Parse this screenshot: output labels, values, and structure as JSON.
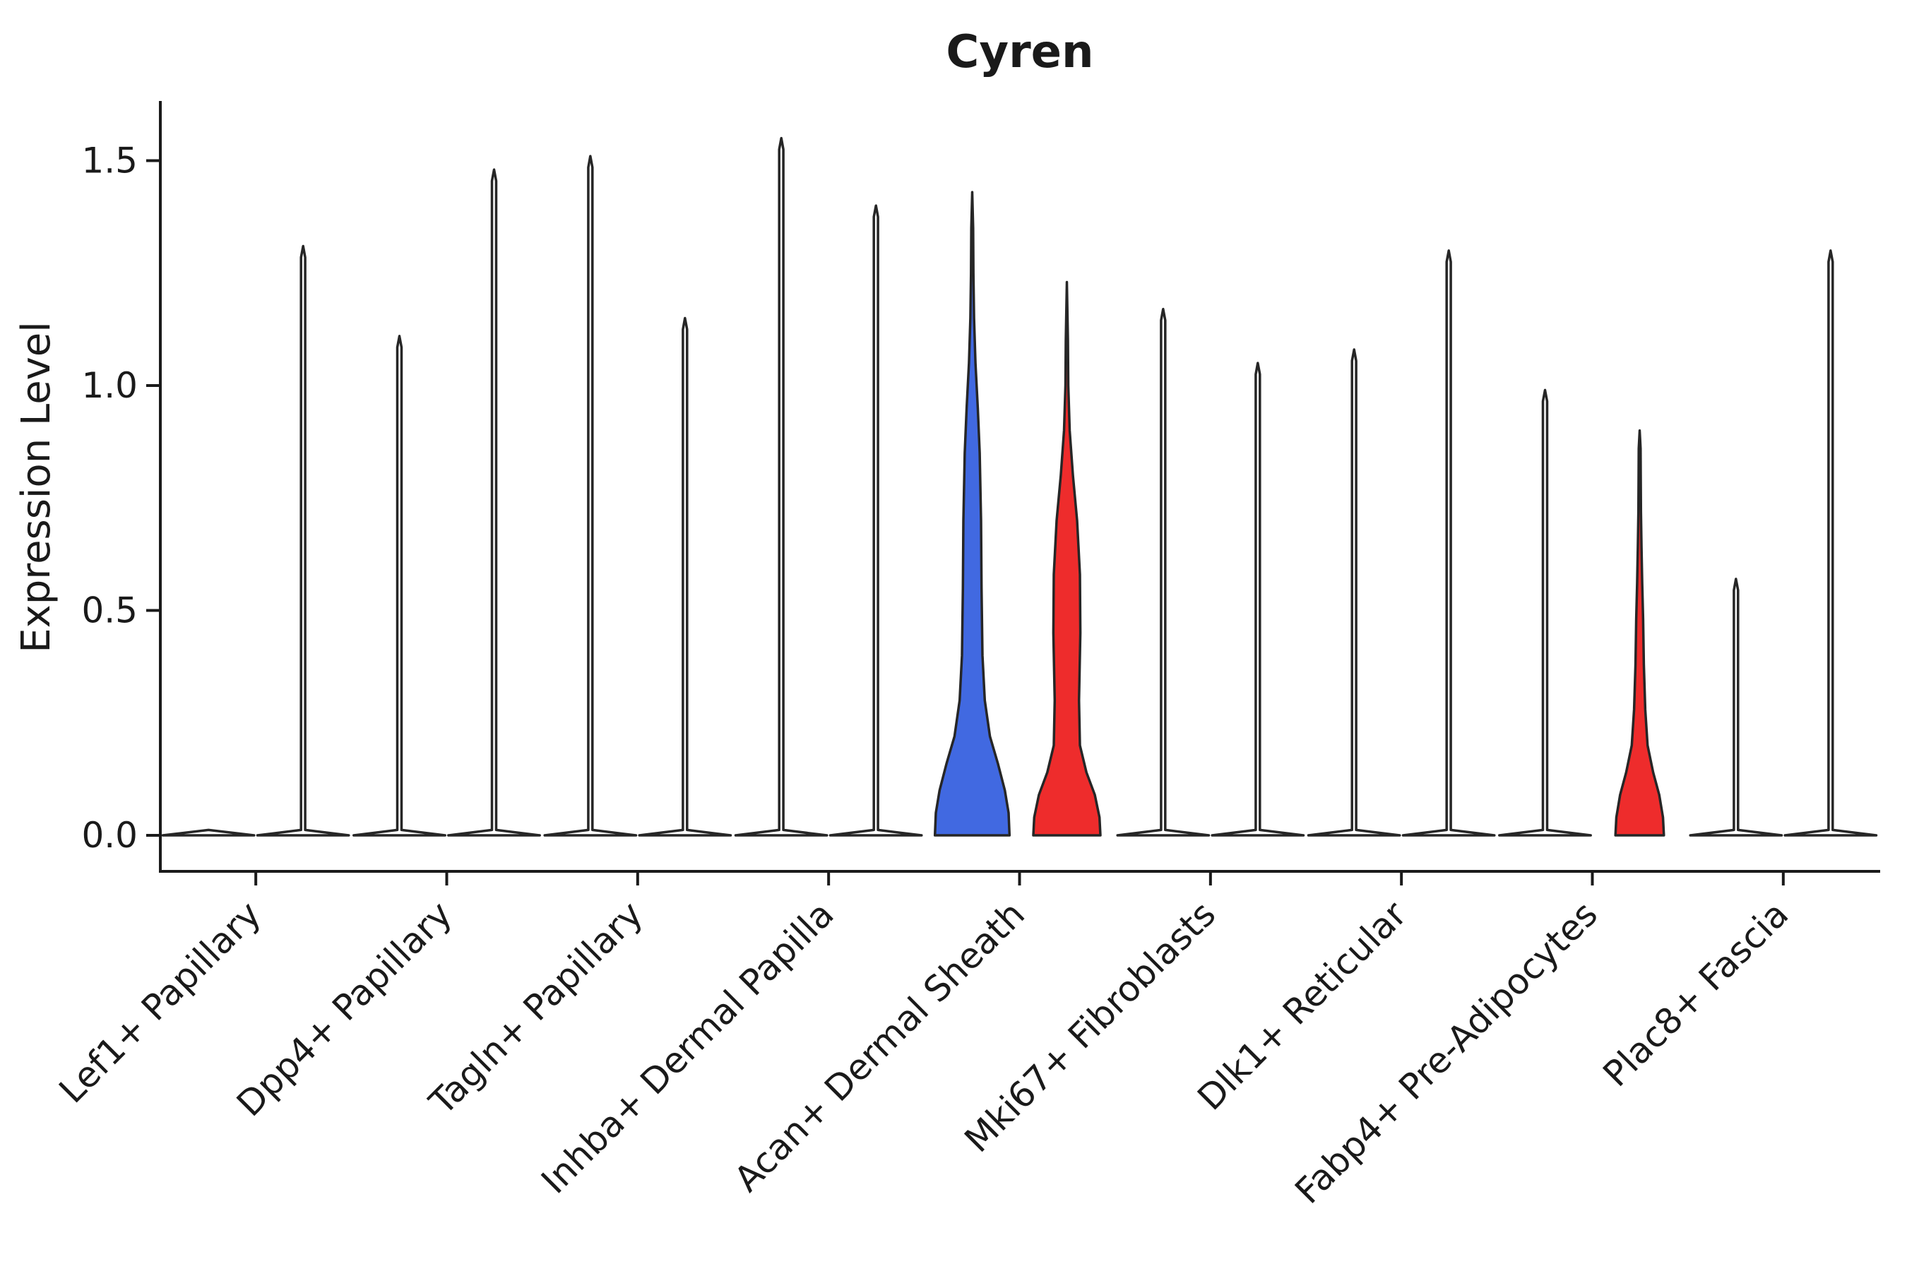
{
  "figure": {
    "background": "#ffffff"
  },
  "chart_data": {
    "type": "violin",
    "title": "Cyren",
    "ylabel": "Expression Level",
    "xlabel": "",
    "ytick_labels": [
      "0.0",
      "0.5",
      "1.0",
      "1.5"
    ],
    "ytick_values": [
      0.0,
      0.5,
      1.0,
      1.5
    ],
    "ylim": [
      -0.08,
      1.63
    ],
    "grid": false,
    "legend": "none",
    "split_violin_pairs": true,
    "colors": {
      "left_fill": "#4169E1",
      "right_fill": "#EE2C2C",
      "outline": "#262626",
      "empty_fill": "#FFFFFF"
    },
    "categories": [
      "Lef1+ Papillary",
      "Dpp4+ Papillary",
      "Tagln+ Papillary",
      "Inhba+ Dermal Papilla",
      "Acan+ Dermal Sheath",
      "Mki67+ Fibroblasts",
      "Dlk1+ Reticular",
      "Fabp4+ Pre-Adipocytes",
      "Plac8+ Fascia"
    ],
    "violins": [
      {
        "category": "Lef1+ Papillary",
        "side": "left",
        "max": 0.0,
        "filled": false
      },
      {
        "category": "Lef1+ Papillary",
        "side": "right",
        "max": 1.31,
        "filled": false
      },
      {
        "category": "Dpp4+ Papillary",
        "side": "left",
        "max": 1.11,
        "filled": false
      },
      {
        "category": "Dpp4+ Papillary",
        "side": "right",
        "max": 1.48,
        "filled": false
      },
      {
        "category": "Tagln+ Papillary",
        "side": "left",
        "max": 1.51,
        "filled": false
      },
      {
        "category": "Tagln+ Papillary",
        "side": "right",
        "max": 1.15,
        "filled": false
      },
      {
        "category": "Inhba+ Dermal Papilla",
        "side": "left",
        "max": 1.55,
        "filled": false
      },
      {
        "category": "Inhba+ Dermal Papilla",
        "side": "right",
        "max": 1.4,
        "filled": false
      },
      {
        "category": "Acan+ Dermal Sheath",
        "side": "left",
        "max": 1.43,
        "filled": true,
        "color": "#4169E1",
        "profile": [
          [
            0,
            0.8
          ],
          [
            0.05,
            0.78
          ],
          [
            0.1,
            0.7
          ],
          [
            0.16,
            0.55
          ],
          [
            0.22,
            0.38
          ],
          [
            0.3,
            0.27
          ],
          [
            0.4,
            0.22
          ],
          [
            0.55,
            0.2
          ],
          [
            0.7,
            0.19
          ],
          [
            0.85,
            0.16
          ],
          [
            0.95,
            0.12
          ],
          [
            1.05,
            0.07
          ],
          [
            1.15,
            0.04
          ],
          [
            1.25,
            0.025
          ],
          [
            1.35,
            0.02
          ],
          [
            1.43,
            0
          ]
        ]
      },
      {
        "category": "Acan+ Dermal Sheath",
        "side": "right",
        "max": 1.23,
        "filled": true,
        "color": "#EE2C2C",
        "profile": [
          [
            0,
            0.72
          ],
          [
            0.04,
            0.7
          ],
          [
            0.09,
            0.6
          ],
          [
            0.14,
            0.42
          ],
          [
            0.2,
            0.28
          ],
          [
            0.3,
            0.26
          ],
          [
            0.45,
            0.29
          ],
          [
            0.58,
            0.28
          ],
          [
            0.7,
            0.22
          ],
          [
            0.8,
            0.13
          ],
          [
            0.9,
            0.06
          ],
          [
            1.0,
            0.03
          ],
          [
            1.1,
            0.022
          ],
          [
            1.23,
            0
          ]
        ]
      },
      {
        "category": "Mki67+ Fibroblasts",
        "side": "left",
        "max": 1.17,
        "filled": false
      },
      {
        "category": "Mki67+ Fibroblasts",
        "side": "right",
        "max": 1.05,
        "filled": false
      },
      {
        "category": "Dlk1+ Reticular",
        "side": "left",
        "max": 1.08,
        "filled": false
      },
      {
        "category": "Dlk1+ Reticular",
        "side": "right",
        "max": 1.3,
        "filled": false
      },
      {
        "category": "Fabp4+ Pre-Adipocytes",
        "side": "left",
        "max": 0.99,
        "filled": false
      },
      {
        "category": "Fabp4+ Pre-Adipocytes",
        "side": "right",
        "max": 0.9,
        "filled": true,
        "color": "#EE2C2C",
        "profile": [
          [
            0,
            0.52
          ],
          [
            0.04,
            0.5
          ],
          [
            0.09,
            0.42
          ],
          [
            0.14,
            0.29
          ],
          [
            0.2,
            0.17
          ],
          [
            0.28,
            0.12
          ],
          [
            0.38,
            0.09
          ],
          [
            0.48,
            0.075
          ],
          [
            0.56,
            0.055
          ],
          [
            0.64,
            0.04
          ],
          [
            0.72,
            0.028
          ],
          [
            0.8,
            0.022
          ],
          [
            0.86,
            0.02
          ],
          [
            0.9,
            0
          ]
        ]
      },
      {
        "category": "Plac8+ Fascia",
        "side": "left",
        "max": 0.57,
        "filled": false
      },
      {
        "category": "Plac8+ Fascia",
        "side": "right",
        "max": 1.3,
        "filled": false
      }
    ]
  }
}
